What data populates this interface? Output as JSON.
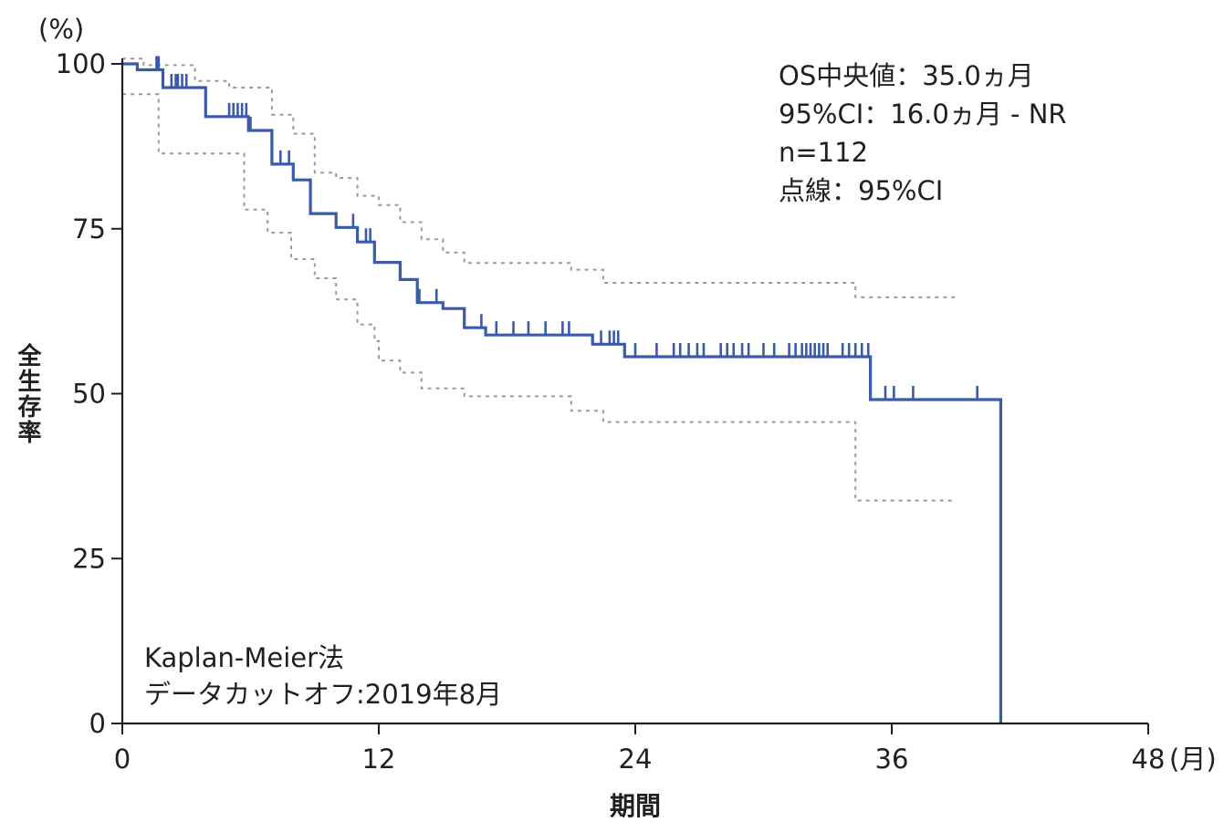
{
  "chart_data": {
    "type": "line",
    "title": "",
    "xlabel": "期間",
    "ylabel": "全生存率",
    "y_unit": "(%)",
    "x_unit": "(月)",
    "xlim": [
      0,
      48
    ],
    "ylim": [
      0,
      100
    ],
    "x_ticks": [
      0,
      12,
      24,
      36,
      48
    ],
    "y_ticks": [
      0,
      25,
      50,
      75,
      100
    ],
    "x_tick_labels": [
      "0",
      "12",
      "24",
      "36",
      "48"
    ],
    "y_tick_labels": [
      "0",
      "25",
      "50",
      "75",
      "100"
    ],
    "grid": false,
    "annotations_top_right": [
      "OS中央値：35.0ヵ月",
      "95%CI：16.0ヵ月 - NR",
      "n=112",
      "点線：95%CI"
    ],
    "annotations_bottom_left": [
      "Kaplan-Meier法",
      "データカットオフ:2019年8月"
    ],
    "colors": {
      "km": "#3a5bab",
      "ci": "#9a9a9a",
      "axis": "#231f20"
    },
    "series": [
      {
        "line_style": "solid",
        "color": "#3a5bab",
        "points": [
          [
            0,
            100
          ],
          [
            0.7,
            100
          ],
          [
            0.7,
            99.1
          ],
          [
            1.9,
            99.1
          ],
          [
            1.9,
            96.4
          ],
          [
            3.9,
            96.4
          ],
          [
            3.9,
            92.0
          ],
          [
            5.9,
            92.0
          ],
          [
            5.9,
            89.9
          ],
          [
            7.0,
            89.9
          ],
          [
            7.0,
            84.8
          ],
          [
            8.0,
            84.8
          ],
          [
            8.0,
            82.4
          ],
          [
            8.8,
            82.4
          ],
          [
            8.8,
            77.3
          ],
          [
            10.0,
            77.3
          ],
          [
            10.0,
            75.2
          ],
          [
            11.0,
            75.2
          ],
          [
            11.0,
            73.0
          ],
          [
            11.8,
            73.0
          ],
          [
            11.8,
            69.9
          ],
          [
            13.0,
            69.9
          ],
          [
            13.0,
            67.3
          ],
          [
            13.8,
            67.3
          ],
          [
            13.8,
            63.8
          ],
          [
            15.0,
            63.8
          ],
          [
            15.0,
            62.9
          ],
          [
            16.0,
            62.9
          ],
          [
            16.0,
            60.0
          ],
          [
            17.0,
            60.0
          ],
          [
            17.0,
            58.9
          ],
          [
            22.0,
            58.9
          ],
          [
            22.0,
            57.5
          ],
          [
            23.5,
            57.5
          ],
          [
            23.5,
            55.6
          ],
          [
            35.0,
            55.6
          ],
          [
            35.0,
            49.1
          ],
          [
            41.1,
            49.1
          ],
          [
            41.1,
            0
          ]
        ]
      },
      {
        "line_style": "dashed",
        "color": "#9a9a9a",
        "points": [
          [
            0,
            100.8
          ],
          [
            1.0,
            100.8
          ],
          [
            1.0,
            99.8
          ],
          [
            3.4,
            99.8
          ],
          [
            3.4,
            97.4
          ],
          [
            5.0,
            97.4
          ],
          [
            5.0,
            96.4
          ],
          [
            7.0,
            96.4
          ],
          [
            7.0,
            92.3
          ],
          [
            8.0,
            92.3
          ],
          [
            8.0,
            89.4
          ],
          [
            9.0,
            89.4
          ],
          [
            9.0,
            83.5
          ],
          [
            10.0,
            83.5
          ],
          [
            10.0,
            82.7
          ],
          [
            11.0,
            82.7
          ],
          [
            11.0,
            80.0
          ],
          [
            12.0,
            80.0
          ],
          [
            12.0,
            78.6
          ],
          [
            13.0,
            78.6
          ],
          [
            13.0,
            76.0
          ],
          [
            14.0,
            76.0
          ],
          [
            14.0,
            73.4
          ],
          [
            15.0,
            73.4
          ],
          [
            15.0,
            71.4
          ],
          [
            16.0,
            71.4
          ],
          [
            16.0,
            69.8
          ],
          [
            21.0,
            69.8
          ],
          [
            21.0,
            68.8
          ],
          [
            22.5,
            68.8
          ],
          [
            22.5,
            66.8
          ],
          [
            34.3,
            66.8
          ],
          [
            34.3,
            64.6
          ],
          [
            39.0,
            64.6
          ]
        ]
      },
      {
        "line_style": "dashed",
        "color": "#9a9a9a",
        "points": [
          [
            0,
            95.4
          ],
          [
            1.7,
            95.4
          ],
          [
            1.7,
            86.4
          ],
          [
            5.7,
            86.4
          ],
          [
            5.7,
            77.9
          ],
          [
            6.8,
            77.9
          ],
          [
            6.8,
            74.4
          ],
          [
            7.9,
            74.4
          ],
          [
            7.9,
            70.4
          ],
          [
            9.0,
            70.4
          ],
          [
            9.0,
            67.5
          ],
          [
            10.0,
            67.5
          ],
          [
            10.0,
            64.3
          ],
          [
            11.0,
            64.3
          ],
          [
            11.0,
            60.5
          ],
          [
            11.8,
            60.5
          ],
          [
            11.8,
            58.0
          ],
          [
            12.0,
            58.0
          ],
          [
            12.0,
            55.0
          ],
          [
            13.0,
            55.0
          ],
          [
            13.0,
            53.2
          ],
          [
            14.0,
            53.2
          ],
          [
            14.0,
            50.8
          ],
          [
            16.0,
            50.8
          ],
          [
            16.0,
            49.6
          ],
          [
            21.0,
            49.6
          ],
          [
            21.0,
            47.4
          ],
          [
            22.5,
            47.4
          ],
          [
            22.5,
            45.7
          ],
          [
            34.3,
            45.7
          ],
          [
            34.3,
            33.8
          ],
          [
            39.0,
            33.8
          ]
        ]
      }
    ],
    "censor_times": [
      1.6,
      1.7,
      2.3,
      2.5,
      2.6,
      2.8,
      3.0,
      5.0,
      5.2,
      5.4,
      5.6,
      5.8,
      6.0,
      7.4,
      7.8,
      10.8,
      11.4,
      11.6,
      13.9,
      14.7,
      16.8,
      17.5,
      18.3,
      19.0,
      19.8,
      20.6,
      20.9,
      22.4,
      22.8,
      23.0,
      23.2,
      24.0,
      25.0,
      25.8,
      26.1,
      26.5,
      26.9,
      27.2,
      28.0,
      28.3,
      28.6,
      29.0,
      29.3,
      30.0,
      30.5,
      31.2,
      31.5,
      31.8,
      32.0,
      32.2,
      32.4,
      32.6,
      32.8,
      33.0,
      33.7,
      34.0,
      34.3,
      34.6,
      34.9,
      35.7,
      36.1,
      37.0,
      40.0
    ]
  }
}
